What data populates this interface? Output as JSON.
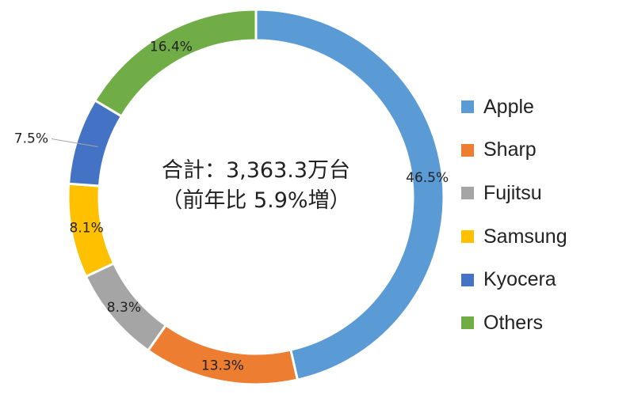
{
  "chart_data": {
    "type": "donut",
    "title": "",
    "center_text": [
      "合計：3,363.3万台",
      "（前年比 5.9%増）"
    ],
    "legend_position": "right",
    "categories": [
      "Apple",
      "Sharp",
      "Fujitsu",
      "Samsung",
      "Kyocera",
      "Others"
    ],
    "values": [
      46.5,
      13.3,
      8.3,
      8.1,
      7.5,
      16.4
    ],
    "labels": [
      "46.5%",
      "13.3%",
      "8.3%",
      "8.1%",
      "7.5%",
      "16.4%"
    ],
    "colors": [
      "#5B9BD5",
      "#ED7D31",
      "#A5A5A5",
      "#FFC000",
      "#4472C4",
      "#70AD47"
    ],
    "unit": "%"
  }
}
